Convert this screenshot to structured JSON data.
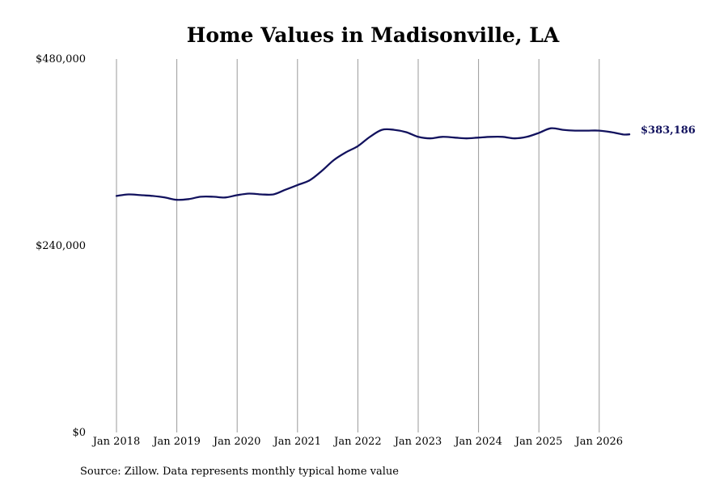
{
  "chart_data": {
    "type": "line",
    "title": "Home Values in Madisonville, LA",
    "source": "Source: Zillow. Data represents monthly typical home value",
    "ylim": [
      0,
      480000
    ],
    "yticks": [
      {
        "value": 480000,
        "label": "$480,000"
      },
      {
        "value": 240000,
        "label": "$240,000"
      },
      {
        "value": 0,
        "label": "$0"
      }
    ],
    "xticks": [
      {
        "value": 2018.0,
        "label": "Jan 2018"
      },
      {
        "value": 2019.0,
        "label": "Jan 2019"
      },
      {
        "value": 2020.0,
        "label": "Jan 2020"
      },
      {
        "value": 2021.0,
        "label": "Jan 2021"
      },
      {
        "value": 2022.0,
        "label": "Jan 2022"
      },
      {
        "value": 2023.0,
        "label": "Jan 2023"
      },
      {
        "value": 2024.0,
        "label": "Jan 2024"
      },
      {
        "value": 2025.0,
        "label": "Jan 2025"
      },
      {
        "value": 2026.0,
        "label": "Jan 2026"
      }
    ],
    "xlim": [
      2018.0,
      2026.5
    ],
    "grid": "vertical",
    "line_color": "#12125e",
    "end_label": "$383,186",
    "series": [
      {
        "points": [
          [
            2018.0,
            304000
          ],
          [
            2018.2,
            306000
          ],
          [
            2018.4,
            305000
          ],
          [
            2018.6,
            304000
          ],
          [
            2018.8,
            302000
          ],
          [
            2019.0,
            299000
          ],
          [
            2019.2,
            300000
          ],
          [
            2019.4,
            303000
          ],
          [
            2019.6,
            303000
          ],
          [
            2019.8,
            302000
          ],
          [
            2020.0,
            305000
          ],
          [
            2020.2,
            307000
          ],
          [
            2020.4,
            306000
          ],
          [
            2020.6,
            306000
          ],
          [
            2020.8,
            312000
          ],
          [
            2021.0,
            318000
          ],
          [
            2021.2,
            324000
          ],
          [
            2021.4,
            336000
          ],
          [
            2021.6,
            350000
          ],
          [
            2021.8,
            360000
          ],
          [
            2022.0,
            368000
          ],
          [
            2022.2,
            380000
          ],
          [
            2022.4,
            389000
          ],
          [
            2022.6,
            389000
          ],
          [
            2022.8,
            386000
          ],
          [
            2023.0,
            380000
          ],
          [
            2023.2,
            378000
          ],
          [
            2023.4,
            380000
          ],
          [
            2023.6,
            379000
          ],
          [
            2023.8,
            378000
          ],
          [
            2024.0,
            379000
          ],
          [
            2024.2,
            380000
          ],
          [
            2024.4,
            380000
          ],
          [
            2024.6,
            378000
          ],
          [
            2024.8,
            380000
          ],
          [
            2025.0,
            385000
          ],
          [
            2025.2,
            391000
          ],
          [
            2025.4,
            389000
          ],
          [
            2025.6,
            388000
          ],
          [
            2025.8,
            388000
          ],
          [
            2026.0,
            388000
          ],
          [
            2026.2,
            386000
          ],
          [
            2026.4,
            383000
          ],
          [
            2026.5,
            383186
          ]
        ]
      }
    ]
  }
}
